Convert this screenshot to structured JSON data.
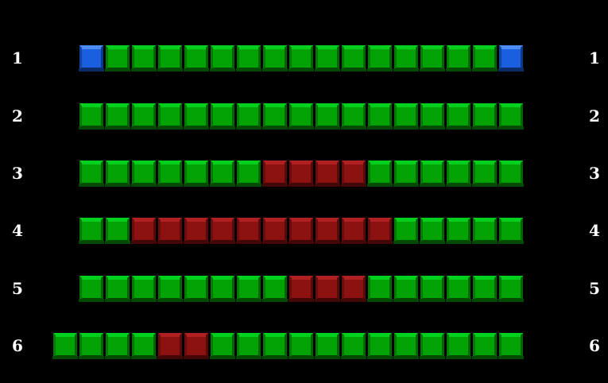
{
  "canvas": {
    "background": "#000000",
    "label_color": "#ffffff"
  },
  "seat_map": {
    "rows": [
      {
        "label": "1",
        "seats": [
          "blue",
          "green",
          "green",
          "green",
          "green",
          "green",
          "green",
          "green",
          "green",
          "green",
          "green",
          "green",
          "green",
          "green",
          "green",
          "green",
          "blue"
        ]
      },
      {
        "label": "2",
        "seats": [
          "green",
          "green",
          "green",
          "green",
          "green",
          "green",
          "green",
          "green",
          "green",
          "green",
          "green",
          "green",
          "green",
          "green",
          "green",
          "green",
          "green"
        ]
      },
      {
        "label": "3",
        "seats": [
          "green",
          "green",
          "green",
          "green",
          "green",
          "green",
          "green",
          "red",
          "red",
          "red",
          "red",
          "green",
          "green",
          "green",
          "green",
          "green",
          "green"
        ]
      },
      {
        "label": "4",
        "seats": [
          "green",
          "green",
          "red",
          "red",
          "red",
          "red",
          "red",
          "red",
          "red",
          "red",
          "red",
          "red",
          "green",
          "green",
          "green",
          "green",
          "green"
        ]
      },
      {
        "label": "5",
        "seats": [
          "green",
          "green",
          "green",
          "green",
          "green",
          "green",
          "green",
          "green",
          "red",
          "red",
          "red",
          "green",
          "green",
          "green",
          "green",
          "green",
          "green"
        ]
      },
      {
        "label": "6",
        "seats": [
          "green",
          "green",
          "green",
          "green",
          "red",
          "red",
          "green",
          "green",
          "green",
          "green",
          "green",
          "green",
          "green",
          "green",
          "green",
          "green",
          "green",
          "green"
        ]
      }
    ],
    "seat_colors": {
      "green": {
        "main": "#00a303",
        "light": "#00cf1d",
        "side_left": "#007a02",
        "side_right": "#006402",
        "dark": "#004a01"
      },
      "red": {
        "main": "#8c1212",
        "light": "#b02020",
        "side_left": "#6b0d0d",
        "side_right": "#570a0a",
        "dark": "#420707"
      },
      "blue": {
        "main": "#1a5fe0",
        "light": "#4c8cf4",
        "side_left": "#12459f",
        "side_right": "#0e3a87",
        "dark": "#0a2c6b"
      }
    }
  }
}
